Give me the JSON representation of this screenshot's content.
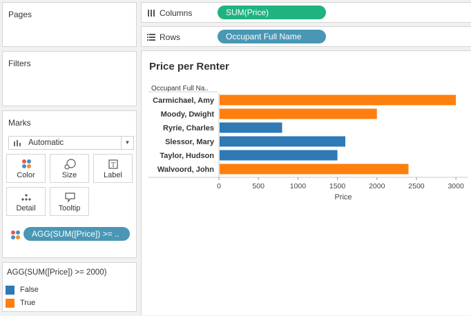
{
  "left": {
    "pages_title": "Pages",
    "filters_title": "Filters",
    "marks": {
      "title": "Marks",
      "mark_type": "Automatic",
      "buttons": {
        "color": "Color",
        "size": "Size",
        "label": "Label",
        "detail": "Detail",
        "tooltip": "Tooltip"
      },
      "color_pill": "AGG(SUM([Price]) >= .."
    },
    "legend": {
      "title": "AGG(SUM([Price]) >= 2000)",
      "items": [
        {
          "label": "False",
          "color": "#2f79b5"
        },
        {
          "label": "True",
          "color": "#ff7f0e"
        }
      ]
    }
  },
  "shelves": {
    "columns_label": "Columns",
    "columns_pill": "SUM(Price)",
    "columns_pill_color": "#1fb37f",
    "rows_label": "Rows",
    "rows_pill": "Occupant Full Name",
    "rows_pill_color": "#4a97b5"
  },
  "view": {
    "title": "Price per Renter"
  },
  "chart_data": {
    "type": "bar",
    "orientation": "horizontal",
    "row_header": "Occupant Full Na..",
    "categories": [
      "Carmichael, Amy",
      "Moody, Dwight",
      "Ryrie, Charles",
      "Slessor, Mary",
      "Taylor, Hudson",
      "Walvoord, John"
    ],
    "values": [
      3000,
      2000,
      800,
      1600,
      1500,
      2400
    ],
    "color_flags": [
      true,
      true,
      false,
      false,
      false,
      true
    ],
    "colors": {
      "true": "#ff7f0e",
      "false": "#2f79b5"
    },
    "x_ticks": [
      0,
      500,
      1000,
      1500,
      2000,
      2500,
      3000
    ],
    "xlim": [
      0,
      3060
    ],
    "xlabel": "Price"
  }
}
